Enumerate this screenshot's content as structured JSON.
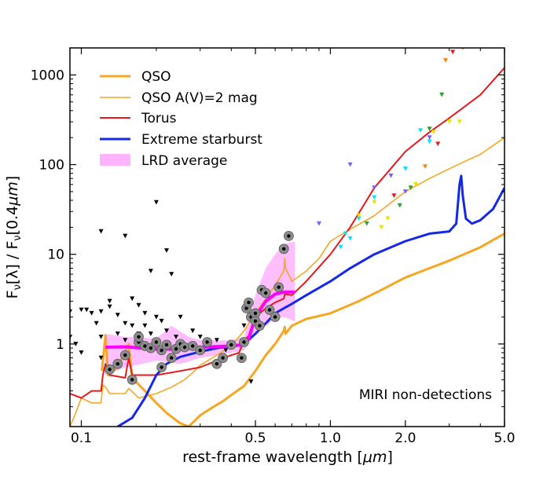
{
  "chart_data": {
    "type": "line",
    "title": "",
    "xlabel_main": "rest-frame wavelength [",
    "xlabel_unit": "μm",
    "xlabel_close": "]",
    "ylabel_main": "F",
    "ylabel_sub": "ν",
    "ylabel_mid": "[λ] / F",
    "ylabel_sub2": "ν",
    "ylabel_end": "[0.4",
    "ylabel_unit": "μm",
    "ylabel_close": "]",
    "x_scale": "log",
    "y_scale": "log",
    "xlim": [
      0.09,
      5.0
    ],
    "ylim": [
      0.12,
      2000
    ],
    "x_ticks": [
      {
        "value": 0.1,
        "label": "0.1"
      },
      {
        "value": 0.5,
        "label": "0.5"
      },
      {
        "value": 1.0,
        "label": "1.0"
      },
      {
        "value": 2.0,
        "label": "2.0"
      },
      {
        "value": 5.0,
        "label": "5.0"
      }
    ],
    "y_ticks": [
      {
        "value": 1,
        "label": "1"
      },
      {
        "value": 10,
        "label": "10"
      },
      {
        "value": 100,
        "label": "100"
      },
      {
        "value": 1000,
        "label": "1000"
      }
    ],
    "annotation": "MIRI non-detections",
    "legend_position": "top-left",
    "series": [
      {
        "name": "QSO",
        "color": "#f5a623",
        "width": 3,
        "points": [
          [
            0.121,
            0.5
          ],
          [
            0.125,
            1.25
          ],
          [
            0.128,
            0.45
          ],
          [
            0.14,
            0.55
          ],
          [
            0.155,
            1.0
          ],
          [
            0.16,
            0.42
          ],
          [
            0.18,
            0.3
          ],
          [
            0.2,
            0.22
          ],
          [
            0.22,
            0.17
          ],
          [
            0.25,
            0.13
          ],
          [
            0.27,
            0.12
          ],
          [
            0.3,
            0.16
          ],
          [
            0.33,
            0.19
          ],
          [
            0.37,
            0.23
          ],
          [
            0.4,
            0.27
          ],
          [
            0.45,
            0.34
          ],
          [
            0.5,
            0.5
          ],
          [
            0.55,
            0.75
          ],
          [
            0.6,
            1.0
          ],
          [
            0.65,
            1.4
          ],
          [
            0.656,
            1.55
          ],
          [
            0.66,
            1.3
          ],
          [
            0.7,
            1.6
          ],
          [
            0.8,
            1.9
          ],
          [
            1.0,
            2.2
          ],
          [
            1.3,
            3.0
          ],
          [
            1.6,
            4.0
          ],
          [
            2.0,
            5.5
          ],
          [
            2.5,
            7.0
          ],
          [
            3.0,
            8.5
          ],
          [
            4.0,
            12
          ],
          [
            5.0,
            17
          ]
        ]
      },
      {
        "name": "QSO A(V)=2 mag",
        "color": "#f5a623",
        "width": 1.6,
        "points": [
          [
            0.09,
            0.12
          ],
          [
            0.095,
            0.17
          ],
          [
            0.1,
            0.25
          ],
          [
            0.11,
            0.22
          ],
          [
            0.12,
            0.22
          ],
          [
            0.122,
            0.35
          ],
          [
            0.125,
            0.33
          ],
          [
            0.13,
            0.28
          ],
          [
            0.15,
            0.28
          ],
          [
            0.155,
            0.32
          ],
          [
            0.17,
            0.25
          ],
          [
            0.2,
            0.28
          ],
          [
            0.23,
            0.33
          ],
          [
            0.26,
            0.4
          ],
          [
            0.28,
            0.48
          ],
          [
            0.3,
            0.58
          ],
          [
            0.35,
            0.75
          ],
          [
            0.4,
            0.95
          ],
          [
            0.45,
            1.4
          ],
          [
            0.5,
            2.2
          ],
          [
            0.55,
            3.2
          ],
          [
            0.6,
            4.5
          ],
          [
            0.65,
            6.5
          ],
          [
            0.656,
            9.0
          ],
          [
            0.66,
            7.0
          ],
          [
            0.7,
            5.0
          ],
          [
            0.8,
            6.5
          ],
          [
            0.9,
            9
          ],
          [
            1.0,
            14
          ],
          [
            1.2,
            19
          ],
          [
            1.5,
            27
          ],
          [
            2.0,
            50
          ],
          [
            2.5,
            70
          ],
          [
            3.0,
            90
          ],
          [
            3.5,
            110
          ],
          [
            4.0,
            130
          ],
          [
            5.0,
            200
          ]
        ]
      },
      {
        "name": "Torus",
        "color": "#e41a1c",
        "width": 2,
        "points": [
          [
            0.09,
            0.28
          ],
          [
            0.1,
            0.25
          ],
          [
            0.11,
            0.3
          ],
          [
            0.12,
            0.3
          ],
          [
            0.122,
            0.45
          ],
          [
            0.125,
            0.6
          ],
          [
            0.13,
            0.45
          ],
          [
            0.15,
            0.42
          ],
          [
            0.155,
            0.7
          ],
          [
            0.16,
            0.45
          ],
          [
            0.2,
            0.45
          ],
          [
            0.25,
            0.5
          ],
          [
            0.3,
            0.55
          ],
          [
            0.35,
            0.65
          ],
          [
            0.4,
            0.75
          ],
          [
            0.43,
            0.8
          ],
          [
            0.45,
            1.1
          ],
          [
            0.48,
            1.3
          ],
          [
            0.486,
            1.5
          ],
          [
            0.5,
            2.0
          ],
          [
            0.55,
            2.5
          ],
          [
            0.6,
            2.9
          ],
          [
            0.65,
            3.2
          ],
          [
            0.656,
            3.6
          ],
          [
            0.7,
            3.5
          ],
          [
            0.8,
            5.0
          ],
          [
            1.0,
            10
          ],
          [
            1.2,
            20
          ],
          [
            1.5,
            55
          ],
          [
            2.0,
            140
          ],
          [
            2.5,
            230
          ],
          [
            3.0,
            330
          ],
          [
            4.0,
            600
          ],
          [
            5.0,
            1200
          ]
        ]
      },
      {
        "name": "Extreme starburst",
        "color": "#1428e6",
        "width": 3,
        "points": [
          [
            0.14,
            0.12
          ],
          [
            0.16,
            0.15
          ],
          [
            0.18,
            0.25
          ],
          [
            0.2,
            0.45
          ],
          [
            0.22,
            0.6
          ],
          [
            0.25,
            0.72
          ],
          [
            0.3,
            0.82
          ],
          [
            0.35,
            0.9
          ],
          [
            0.4,
            0.95
          ],
          [
            0.45,
            1.0
          ],
          [
            0.5,
            1.3
          ],
          [
            0.55,
            1.7
          ],
          [
            0.6,
            2.2
          ],
          [
            0.65,
            2.5
          ],
          [
            0.7,
            2.8
          ],
          [
            0.8,
            3.5
          ],
          [
            1.0,
            5.0
          ],
          [
            1.2,
            7.0
          ],
          [
            1.5,
            10
          ],
          [
            2.0,
            14
          ],
          [
            2.5,
            17
          ],
          [
            3.0,
            18
          ],
          [
            3.2,
            22
          ],
          [
            3.3,
            60
          ],
          [
            3.35,
            75
          ],
          [
            3.4,
            45
          ],
          [
            3.5,
            25
          ],
          [
            3.7,
            22
          ],
          [
            4.0,
            24
          ],
          [
            4.5,
            32
          ],
          [
            5.0,
            55
          ]
        ]
      },
      {
        "name": "LRD average",
        "color": "#ff00ff",
        "width": 4,
        "points": [
          [
            0.125,
            0.92
          ],
          [
            0.15,
            0.93
          ],
          [
            0.2,
            0.88
          ],
          [
            0.25,
            0.87
          ],
          [
            0.3,
            0.92
          ],
          [
            0.4,
            0.95
          ],
          [
            0.45,
            0.98
          ],
          [
            0.47,
            1.15
          ],
          [
            0.5,
            2.0
          ],
          [
            0.55,
            3.0
          ],
          [
            0.6,
            3.6
          ],
          [
            0.65,
            3.8
          ],
          [
            0.72,
            3.8
          ]
        ]
      }
    ],
    "lrd_band": {
      "upper": [
        [
          0.125,
          1.3
        ],
        [
          0.15,
          1.2
        ],
        [
          0.2,
          1.15
        ],
        [
          0.23,
          1.6
        ],
        [
          0.27,
          1.2
        ],
        [
          0.3,
          1.1
        ],
        [
          0.4,
          1.1
        ],
        [
          0.45,
          1.2
        ],
        [
          0.5,
          3.5
        ],
        [
          0.55,
          7
        ],
        [
          0.6,
          10
        ],
        [
          0.65,
          13
        ],
        [
          0.72,
          14
        ]
      ],
      "lower": [
        [
          0.125,
          0.45
        ],
        [
          0.15,
          0.55
        ],
        [
          0.2,
          0.65
        ],
        [
          0.25,
          0.6
        ],
        [
          0.3,
          0.7
        ],
        [
          0.4,
          0.8
        ],
        [
          0.45,
          0.85
        ],
        [
          0.5,
          1.3
        ],
        [
          0.55,
          1.6
        ],
        [
          0.6,
          1.9
        ],
        [
          0.65,
          2.0
        ],
        [
          0.72,
          1.8
        ]
      ]
    },
    "detections": [
      [
        0.13,
        0.52
      ],
      [
        0.14,
        0.6
      ],
      [
        0.15,
        0.75
      ],
      [
        0.16,
        0.4
      ],
      [
        0.17,
        1.05
      ],
      [
        0.17,
        1.2
      ],
      [
        0.18,
        0.95
      ],
      [
        0.19,
        0.9
      ],
      [
        0.2,
        1.05
      ],
      [
        0.21,
        0.85
      ],
      [
        0.21,
        0.55
      ],
      [
        0.22,
        0.98
      ],
      [
        0.23,
        0.7
      ],
      [
        0.24,
        0.88
      ],
      [
        0.25,
        1.0
      ],
      [
        0.26,
        0.92
      ],
      [
        0.28,
        0.95
      ],
      [
        0.3,
        0.85
      ],
      [
        0.32,
        1.05
      ],
      [
        0.35,
        0.6
      ],
      [
        0.37,
        0.7
      ],
      [
        0.4,
        0.98
      ],
      [
        0.44,
        0.7
      ],
      [
        0.45,
        1.05
      ],
      [
        0.46,
        2.5
      ],
      [
        0.47,
        2.9
      ],
      [
        0.48,
        2.0
      ],
      [
        0.5,
        2.2
      ],
      [
        0.5,
        1.8
      ],
      [
        0.52,
        1.6
      ],
      [
        0.53,
        4.0
      ],
      [
        0.55,
        3.7
      ],
      [
        0.57,
        2.4
      ],
      [
        0.6,
        2.0
      ],
      [
        0.62,
        4.3
      ],
      [
        0.65,
        11.5
      ],
      [
        0.68,
        16
      ]
    ],
    "nondetections_black": [
      [
        0.09,
        2.3
      ],
      [
        0.09,
        1.2
      ],
      [
        0.095,
        1.0
      ],
      [
        0.1,
        2.4
      ],
      [
        0.1,
        0.8
      ],
      [
        0.105,
        2.4
      ],
      [
        0.11,
        2.2
      ],
      [
        0.115,
        1.7
      ],
      [
        0.12,
        18
      ],
      [
        0.12,
        2.3
      ],
      [
        0.12,
        1.2
      ],
      [
        0.12,
        0.7
      ],
      [
        0.13,
        3.0
      ],
      [
        0.13,
        2.6
      ],
      [
        0.14,
        2.1
      ],
      [
        0.14,
        1.3
      ],
      [
        0.15,
        16
      ],
      [
        0.15,
        1.7
      ],
      [
        0.15,
        1.1
      ],
      [
        0.16,
        3.2
      ],
      [
        0.16,
        1.6
      ],
      [
        0.17,
        2.7
      ],
      [
        0.17,
        1.3
      ],
      [
        0.18,
        2.2
      ],
      [
        0.18,
        1.6
      ],
      [
        0.19,
        6.5
      ],
      [
        0.19,
        1.3
      ],
      [
        0.2,
        2.0
      ],
      [
        0.2,
        38
      ],
      [
        0.21,
        1.8
      ],
      [
        0.22,
        11
      ],
      [
        0.22,
        1.4
      ],
      [
        0.23,
        6.0
      ],
      [
        0.24,
        1.2
      ],
      [
        0.25,
        2.0
      ],
      [
        0.28,
        1.4
      ],
      [
        0.3,
        1.2
      ],
      [
        0.35,
        1.1
      ],
      [
        0.38,
        0.85
      ],
      [
        0.45,
        1.6
      ],
      [
        0.48,
        0.38
      ]
    ],
    "nondetections_colored": [
      {
        "color": "#00e5ff",
        "points": [
          [
            1.1,
            12
          ],
          [
            1.15,
            17
          ],
          [
            1.2,
            15
          ],
          [
            1.3,
            25
          ],
          [
            1.5,
            43
          ],
          [
            2.0,
            90
          ],
          [
            2.3,
            240
          ],
          [
            2.5,
            180
          ]
        ]
      },
      {
        "color": "#7a5cff",
        "points": [
          [
            0.9,
            22
          ],
          [
            1.2,
            100
          ],
          [
            1.5,
            55
          ],
          [
            1.75,
            75
          ],
          [
            2.0,
            50
          ],
          [
            2.5,
            200
          ]
        ]
      },
      {
        "color": "#e6e600",
        "points": [
          [
            1.3,
            27
          ],
          [
            1.5,
            38
          ],
          [
            1.6,
            20
          ],
          [
            1.7,
            25
          ],
          [
            2.2,
            60
          ],
          [
            2.6,
            230
          ],
          [
            3.0,
            300
          ],
          [
            3.3,
            300
          ]
        ]
      },
      {
        "color": "#2ca02c",
        "points": [
          [
            1.4,
            22
          ],
          [
            1.9,
            35
          ],
          [
            2.1,
            55
          ],
          [
            2.5,
            250
          ],
          [
            2.8,
            600
          ]
        ]
      },
      {
        "color": "#ff7f0e",
        "points": [
          [
            2.4,
            95
          ],
          [
            2.9,
            1450
          ],
          [
            3.4,
            2000
          ]
        ]
      },
      {
        "color": "#e41a1c",
        "points": [
          [
            1.8,
            45
          ],
          [
            2.7,
            170
          ],
          [
            3.1,
            1800
          ]
        ]
      }
    ]
  }
}
